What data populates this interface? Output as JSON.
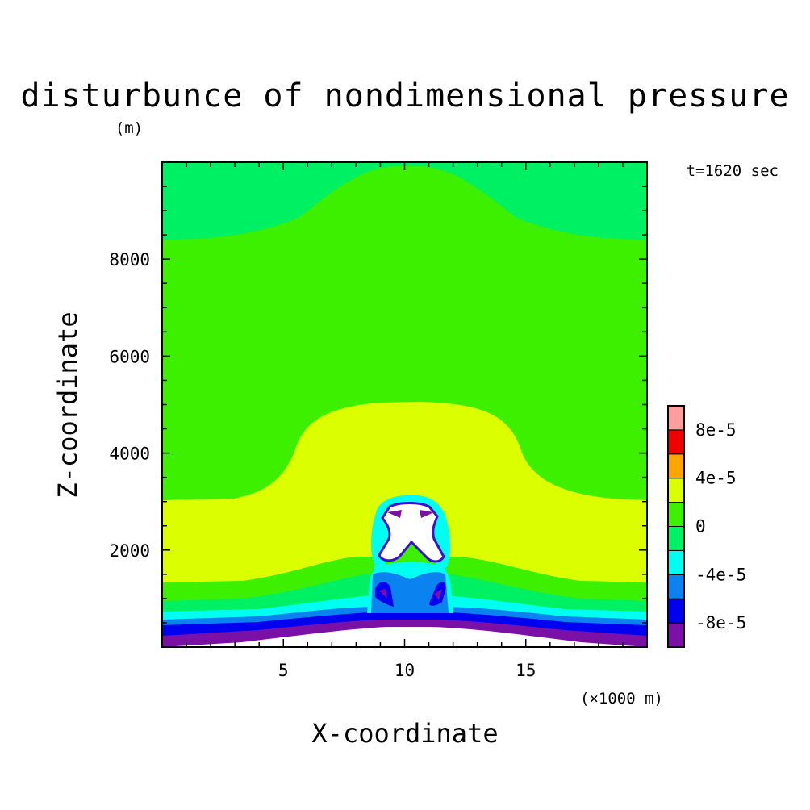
{
  "chart_data": {
    "type": "heatmap",
    "title": "disturbunce of nondimensional pressure",
    "y_unit": "(m)",
    "time_label": "t=1620 sec",
    "xlabel": "X-coordinate",
    "ylabel": "Z-coordinate",
    "x_unit": "(×1000 m)",
    "xlim": [
      0,
      20
    ],
    "ylim": [
      0,
      10000
    ],
    "x_ticks": [
      {
        "value": 5,
        "label": "5"
      },
      {
        "value": 10,
        "label": "10"
      },
      {
        "value": 15,
        "label": "15"
      }
    ],
    "y_ticks": [
      {
        "value": 2000,
        "label": "2000"
      },
      {
        "value": 4000,
        "label": "4000"
      },
      {
        "value": 6000,
        "label": "6000"
      },
      {
        "value": 8000,
        "label": "8000"
      }
    ],
    "colorbar": {
      "levels": [
        -0.0001,
        -8e-05,
        -6e-05,
        -4e-05,
        -2e-05,
        0,
        2e-05,
        4e-05,
        6e-05,
        8e-05,
        0.0001
      ],
      "colors": [
        "#7a10a6",
        "#0000f0",
        "#0a82f0",
        "#00fff0",
        "#00f064",
        "#3cf000",
        "#dcff00",
        "#ffa500",
        "#f00000",
        "#ff9e9e"
      ],
      "tick_labels": [
        {
          "value": 8e-05,
          "label": "8e-5"
        },
        {
          "value": 4e-05,
          "label": "4e-5"
        },
        {
          "value": 0,
          "label": "0"
        },
        {
          "value": -4e-05,
          "label": "-4e-5"
        },
        {
          "value": -8e-05,
          "label": "-8e-5"
        }
      ]
    },
    "regions": [
      {
        "level": "0 to 2e-5",
        "color": "#3cf000",
        "description": "upper layer"
      },
      {
        "level": "-2e-5 to 0",
        "color": "#00f064",
        "description": "top band"
      },
      {
        "level": "2e-5 to 4e-5",
        "color": "#dcff00",
        "description": "middle dome"
      },
      {
        "level": "< -1e-4",
        "color": "#ffffff",
        "description": "low center anomaly"
      }
    ]
  }
}
